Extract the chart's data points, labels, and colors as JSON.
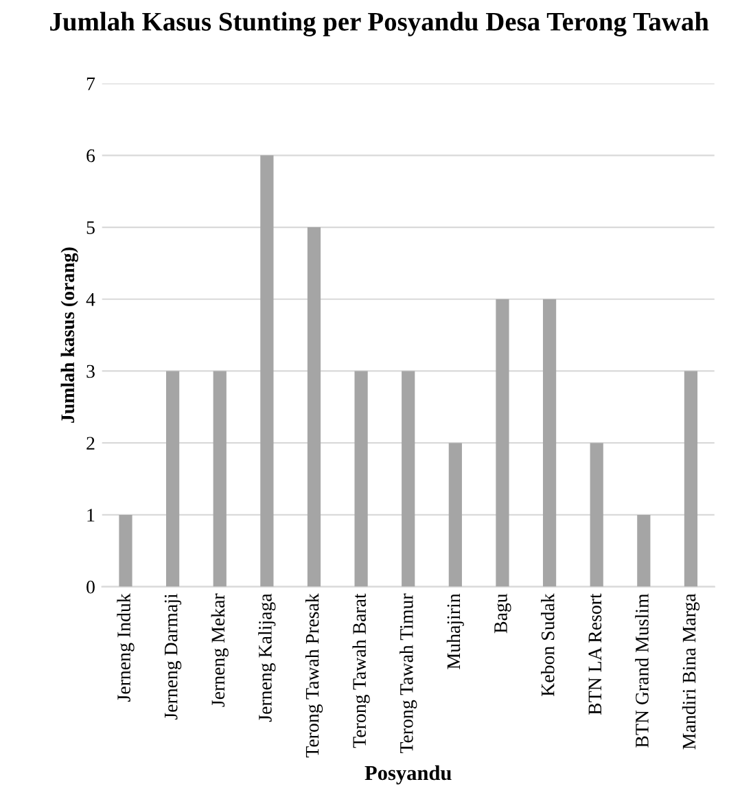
{
  "chart_data": {
    "type": "bar",
    "title": "Jumlah Kasus Stunting per Posyandu Desa Terong Tawah",
    "xlabel": "Posyandu",
    "ylabel": "Jumlah kasus (orang)",
    "categories": [
      "Jerneng Induk",
      "Jerneng Darmaji",
      "Jerneng Mekar",
      "Jerneng Kalijaga",
      "Terong Tawah Presak",
      "Terong Tawah Barat",
      "Terong Tawah Timur",
      "Muhajirin",
      "Bagu",
      "Kebon Sudak",
      "BTN LA Resort",
      "BTN Grand Muslim",
      "Mandiri Bina Marga"
    ],
    "values": [
      1,
      3,
      3,
      6,
      5,
      3,
      3,
      2,
      4,
      4,
      2,
      1,
      3
    ],
    "color": "#a5a5a5",
    "ylim": [
      0,
      7
    ],
    "yticks": [
      0,
      1,
      2,
      3,
      4,
      5,
      6,
      7
    ],
    "grid": "y",
    "legend": false
  }
}
